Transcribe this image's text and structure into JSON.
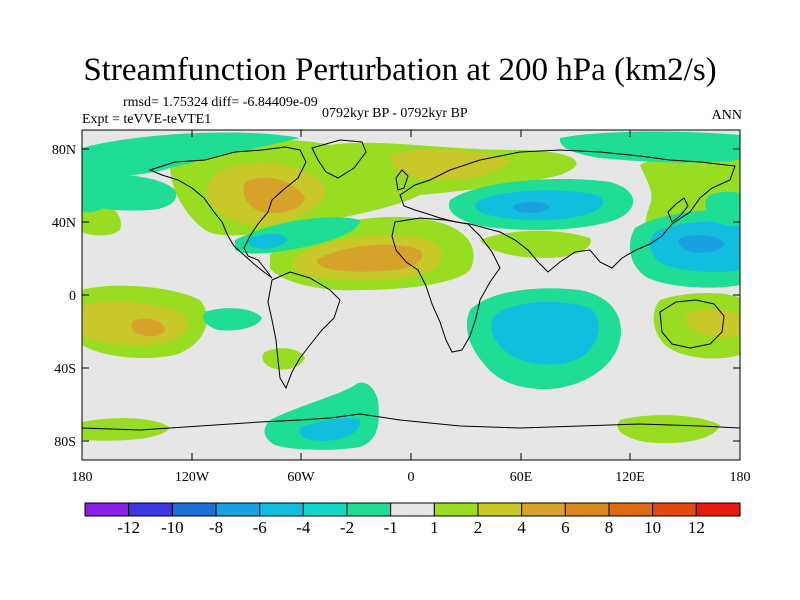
{
  "title": "Streamfunction Perturbation at 200 hPa (km2/s)",
  "stats": {
    "rmsd_text": "rmsd= 1.75324 diff= -6.84409e-09"
  },
  "experiment": "Expt = teVVE-teVTE1",
  "period": "0792kyr BP - 0792kyr BP",
  "season": "ANN",
  "map": {
    "x_ticks": [
      "180",
      "120W",
      "60W",
      "0",
      "60E",
      "120E",
      "180"
    ],
    "y_ticks": [
      "80N",
      "40N",
      "0",
      "40S",
      "80S"
    ],
    "background_color": "#e6e6e6",
    "colors": {
      "pos1": "#99dd22",
      "pos2": "#c8c82a",
      "pos3": "#d6a22a",
      "neg1": "#22dd99",
      "neg2": "#1cc8c8"
    }
  },
  "colorbar": {
    "colors": [
      "#8a20e8",
      "#3a3ae0",
      "#1f6fd8",
      "#1aa0e0",
      "#12bedd",
      "#14d6c4",
      "#20dd95",
      "#e6e6e6",
      "#99dd22",
      "#c8c82a",
      "#d6a22a",
      "#d98a1e",
      "#dd6a14",
      "#e24a10",
      "#e81a10"
    ],
    "labels": [
      "-12",
      "-10",
      "-8",
      "-6",
      "-4",
      "-2",
      "-1",
      "1",
      "2",
      "4",
      "6",
      "8",
      "10",
      "12"
    ]
  }
}
